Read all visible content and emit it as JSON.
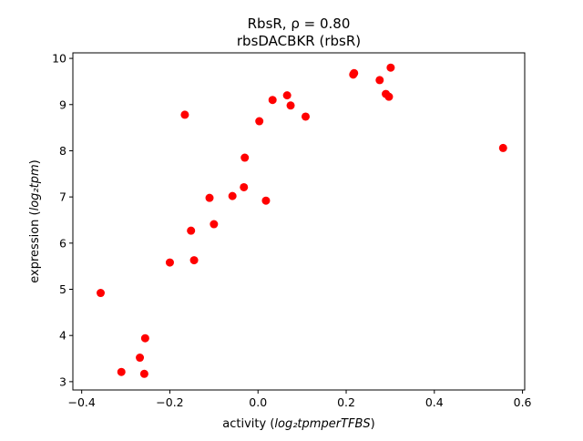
{
  "chart_data": {
    "type": "scatter",
    "title": "RbsR, ρ = 0.80",
    "subtitle": "rbsDACBKR (rbsR)",
    "xlabel_prefix": "activity (",
    "xlabel_math": "log₂tpmperTFBS",
    "xlabel_suffix": ")",
    "ylabel_prefix": "expression (",
    "ylabel_math": "log₂tpm",
    "ylabel_suffix": ")",
    "xlim": [
      -0.42,
      0.605
    ],
    "ylim": [
      2.82,
      10.12
    ],
    "xticks": [
      -0.4,
      -0.2,
      0.0,
      0.2,
      0.4,
      0.6
    ],
    "xtick_labels": [
      "−0.4",
      "−0.2",
      "0.0",
      "0.2",
      "0.4",
      "0.6"
    ],
    "yticks": [
      3,
      4,
      5,
      6,
      7,
      8,
      9,
      10
    ],
    "ytick_labels": [
      "3",
      "4",
      "5",
      "6",
      "7",
      "8",
      "9",
      "10"
    ],
    "grid": false,
    "marker_color": "#ff0000",
    "points": [
      {
        "x": -0.357,
        "y": 4.92
      },
      {
        "x": -0.31,
        "y": 3.21
      },
      {
        "x": -0.268,
        "y": 3.52
      },
      {
        "x": -0.258,
        "y": 3.17
      },
      {
        "x": -0.256,
        "y": 3.94
      },
      {
        "x": -0.2,
        "y": 5.58
      },
      {
        "x": -0.166,
        "y": 8.78
      },
      {
        "x": -0.152,
        "y": 6.27
      },
      {
        "x": -0.145,
        "y": 5.63
      },
      {
        "x": -0.11,
        "y": 6.98
      },
      {
        "x": -0.1,
        "y": 6.41
      },
      {
        "x": -0.058,
        "y": 7.02
      },
      {
        "x": -0.032,
        "y": 7.21
      },
      {
        "x": -0.03,
        "y": 7.85
      },
      {
        "x": 0.003,
        "y": 8.64
      },
      {
        "x": 0.018,
        "y": 6.92
      },
      {
        "x": 0.033,
        "y": 9.1
      },
      {
        "x": 0.066,
        "y": 9.2
      },
      {
        "x": 0.074,
        "y": 8.98
      },
      {
        "x": 0.108,
        "y": 8.74
      },
      {
        "x": 0.216,
        "y": 9.65
      },
      {
        "x": 0.218,
        "y": 9.68
      },
      {
        "x": 0.276,
        "y": 9.53
      },
      {
        "x": 0.29,
        "y": 9.23
      },
      {
        "x": 0.297,
        "y": 9.17
      },
      {
        "x": 0.301,
        "y": 9.8
      },
      {
        "x": 0.556,
        "y": 8.06
      }
    ]
  }
}
